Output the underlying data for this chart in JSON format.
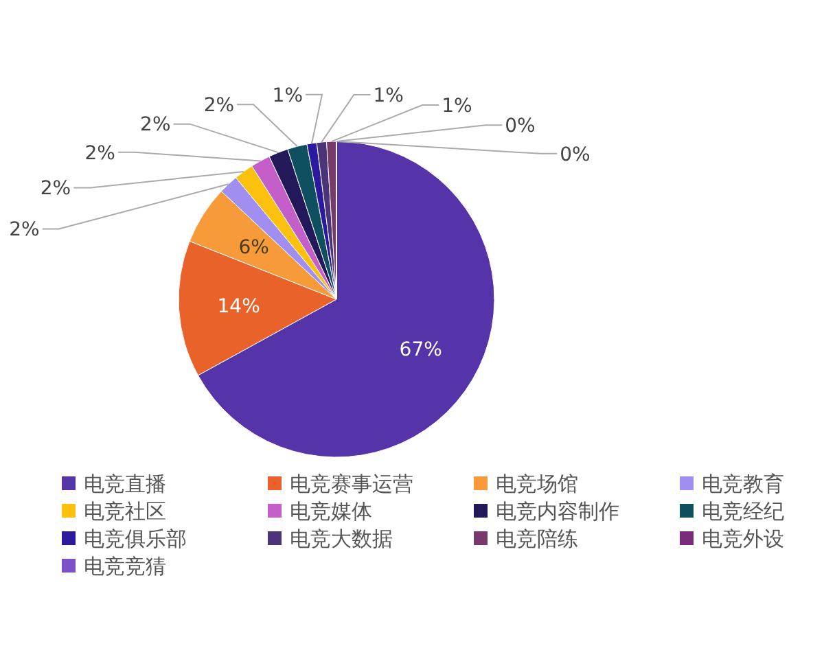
{
  "chart_data": {
    "type": "pie",
    "categories": [
      "电竞直播",
      "电竞赛事运营",
      "电竞场馆",
      "电竞教育",
      "电竞社区",
      "电竞媒体",
      "电竞内容制作",
      "电竞经纪",
      "电竞俱乐部",
      "电竞大数据",
      "电竞陪练",
      "电竞外设",
      "电竞竞猜"
    ],
    "values": [
      67,
      14,
      6,
      2,
      2,
      2,
      2,
      2,
      1,
      1,
      1,
      0,
      0
    ],
    "value_labels": [
      "67%",
      "14%",
      "6%",
      "2%",
      "2%",
      "2%",
      "2%",
      "2%",
      "1%",
      "1%",
      "1%",
      "0%",
      "0%"
    ],
    "colors": [
      "#5533a8",
      "#e8622a",
      "#f79a3a",
      "#a08ef0",
      "#fcc10e",
      "#c45ec8",
      "#22185a",
      "#0e5060",
      "#2c1a9e",
      "#4a3578",
      "#773a6a",
      "#7a2a7a",
      "#7c50c8"
    ],
    "legend": "bottom"
  }
}
